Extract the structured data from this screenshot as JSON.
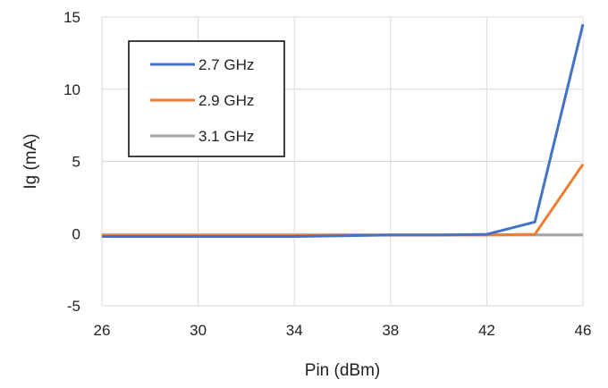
{
  "chart_data": {
    "type": "line",
    "xlabel": "Pin (dBm)",
    "ylabel": "Ig (mA)",
    "xlim": [
      26,
      46
    ],
    "ylim": [
      -5,
      15
    ],
    "xticks": [
      26,
      30,
      34,
      38,
      42,
      46
    ],
    "yticks": [
      -5,
      0,
      5,
      10,
      15
    ],
    "grid": true,
    "legend_position": "top-left",
    "series": [
      {
        "name": "2.7 GHz",
        "color": "#4472C4",
        "x": [
          26,
          28,
          30,
          32,
          34,
          36,
          38,
          40,
          42,
          44,
          46
        ],
        "y": [
          -0.2,
          -0.2,
          -0.2,
          -0.2,
          -0.2,
          -0.15,
          -0.1,
          -0.1,
          -0.05,
          0.8,
          14.5
        ]
      },
      {
        "name": "2.9 GHz",
        "color": "#ED7D31",
        "x": [
          26,
          28,
          30,
          32,
          34,
          36,
          38,
          40,
          42,
          44,
          46
        ],
        "y": [
          -0.1,
          -0.1,
          -0.1,
          -0.1,
          -0.1,
          -0.1,
          -0.1,
          -0.1,
          -0.1,
          -0.05,
          4.8
        ]
      },
      {
        "name": "3.1 GHz",
        "color": "#A5A5A5",
        "x": [
          26,
          28,
          30,
          32,
          34,
          36,
          38,
          40,
          42,
          44,
          46
        ],
        "y": [
          -0.2,
          -0.2,
          -0.2,
          -0.15,
          -0.15,
          -0.1,
          -0.1,
          -0.1,
          -0.1,
          -0.1,
          -0.1
        ]
      }
    ]
  }
}
